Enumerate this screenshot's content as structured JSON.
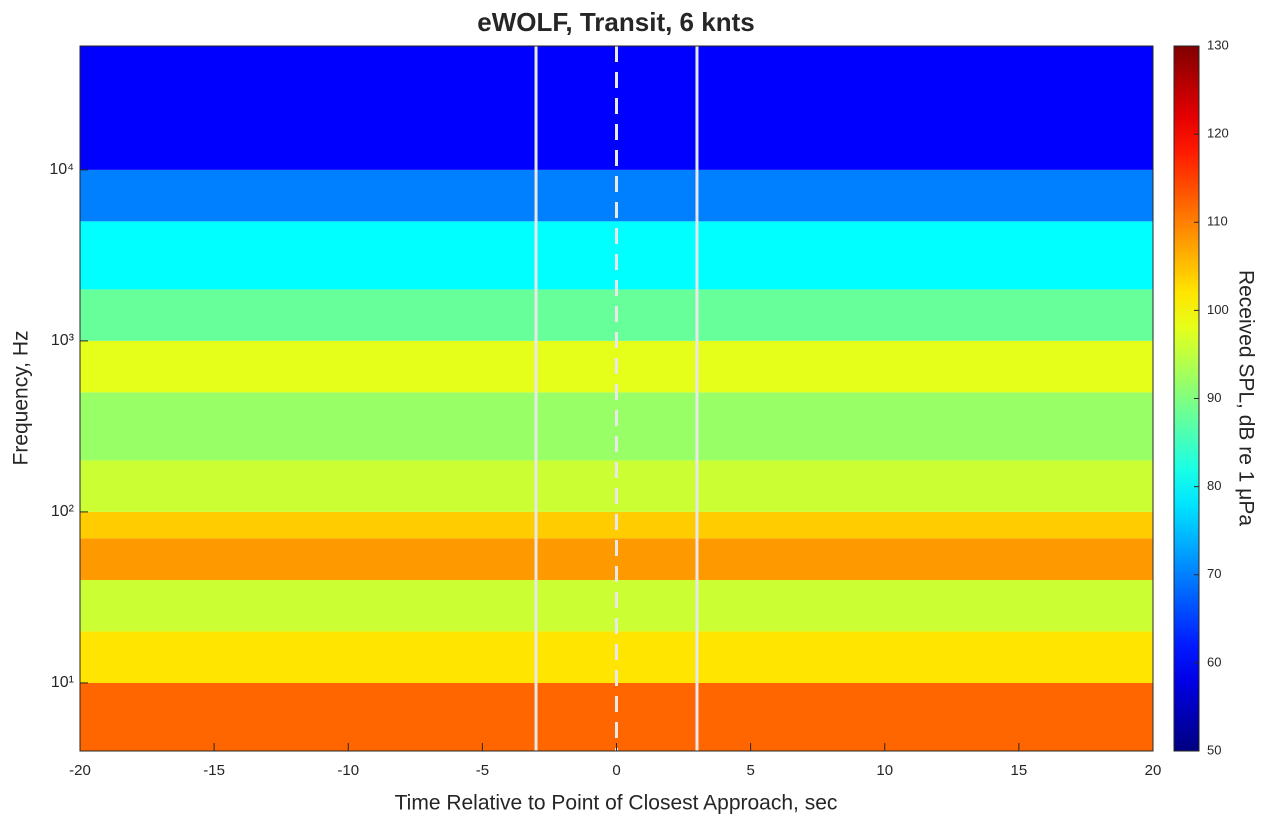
{
  "chart_data": {
    "type": "spectrogram",
    "title": "eWOLF, Transit, 6 knts",
    "xlabel": "Time Relative to Point of Closest Approach, sec",
    "ylabel": "Frequency, Hz",
    "colorbar_label": "Received SPL, dB re 1 μPa",
    "xlim": [
      -20,
      20
    ],
    "xticks": [
      -20,
      -15,
      -10,
      -5,
      0,
      5,
      10,
      15,
      20
    ],
    "ylim": [
      4,
      53000
    ],
    "log_y": true,
    "yticks": [
      {
        "value": 10,
        "label": "10¹"
      },
      {
        "value": 100,
        "label": "10²"
      },
      {
        "value": 1000,
        "label": "10³"
      },
      {
        "value": 10000,
        "label": "10⁴"
      }
    ],
    "clim": [
      50,
      130
    ],
    "cticks": [
      50,
      60,
      70,
      80,
      90,
      100,
      110,
      120,
      130
    ],
    "colormap": "jet",
    "frequency_bins": [
      4,
      10,
      20,
      40,
      70,
      100,
      200,
      500,
      1000,
      2000,
      5000,
      10000,
      53000
    ],
    "levels": [
      112,
      102,
      96,
      108,
      104,
      96,
      92,
      98,
      88,
      80,
      70,
      60
    ],
    "markers": [
      {
        "x": -3,
        "style": "solid"
      },
      {
        "x": 0,
        "style": "dashed"
      },
      {
        "x": 3,
        "style": "solid"
      }
    ],
    "marker_color": "#e8e8e8"
  }
}
